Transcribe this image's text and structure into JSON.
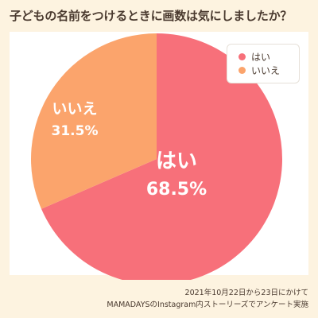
{
  "title": "子どもの名前をつけるときに画数は気にしましたか？",
  "chart_data": {
    "type": "pie",
    "title": "子どもの名前をつけるときに画数は気にしましたか？",
    "categories": [
      "はい",
      "いいえ"
    ],
    "values": [
      68.5,
      31.5
    ],
    "value_labels": [
      "68.5%",
      "31.5%"
    ],
    "colors": [
      "#f7707a",
      "#fba46c"
    ],
    "legend_position": "top-right"
  },
  "legend": {
    "items": [
      {
        "label": "はい",
        "color": "#f7707a"
      },
      {
        "label": "いいえ",
        "color": "#fba46c"
      }
    ]
  },
  "footnote": {
    "line1": "2021年10月22日から23日にかけて",
    "line2": "MAMADAYSのInstagram内ストーリーズでアンケート実施"
  }
}
